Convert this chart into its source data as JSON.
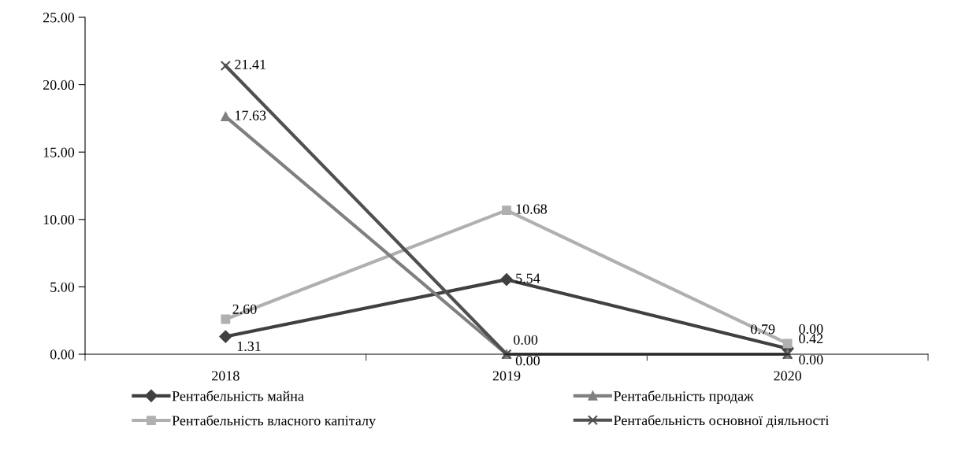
{
  "chart_data": {
    "type": "line",
    "categories": [
      "2018",
      "2019",
      "2020"
    ],
    "series": [
      {
        "name": "Рентабельність майна",
        "color": "#404040",
        "marker": "diamond",
        "values": [
          1.31,
          5.54,
          0.42
        ],
        "value_labels": [
          "1.31",
          "5.54",
          "0.42"
        ]
      },
      {
        "name": "Рентабельність власного капіталу",
        "color": "#b0b0b0",
        "marker": "square",
        "values": [
          2.6,
          10.68,
          0.79
        ],
        "value_labels": [
          "2.60",
          "10.68",
          "0.79"
        ]
      },
      {
        "name": "Рентабельність продаж",
        "color": "#808080",
        "marker": "triangle",
        "values": [
          17.63,
          0.0,
          0.0
        ],
        "value_labels": [
          "17.63",
          "0.00",
          "0.00"
        ]
      },
      {
        "name": "Рентабельність основної діяльності",
        "color": "#505050",
        "marker": "cross",
        "values": [
          21.41,
          0.0,
          0.0
        ],
        "value_labels": [
          "21.41",
          "0.00",
          "0.00"
        ]
      }
    ],
    "ylim": [
      0,
      25
    ],
    "yticks": [
      {
        "value": 0,
        "label": "0.00"
      },
      {
        "value": 5,
        "label": "5.00"
      },
      {
        "value": 10,
        "label": "10.00"
      },
      {
        "value": 15,
        "label": "15.00"
      },
      {
        "value": 20,
        "label": "20.00"
      },
      {
        "value": 25,
        "label": "25.00"
      }
    ],
    "grid": false,
    "legend": "bottom"
  }
}
